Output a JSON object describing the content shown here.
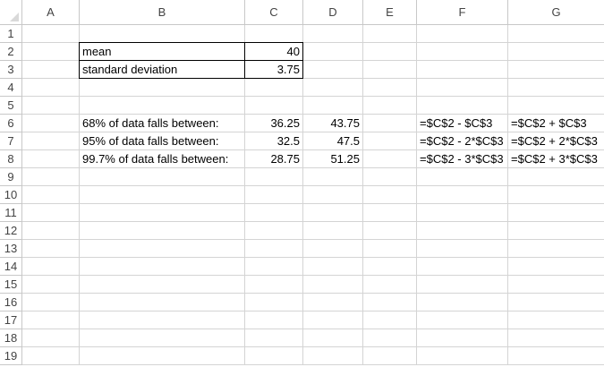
{
  "columns": [
    "A",
    "B",
    "C",
    "D",
    "E",
    "F",
    "G"
  ],
  "rows": [
    "1",
    "2",
    "3",
    "4",
    "5",
    "6",
    "7",
    "8",
    "9",
    "10",
    "11",
    "12",
    "13",
    "14",
    "15",
    "16",
    "17",
    "18",
    "19"
  ],
  "cells": {
    "B2": "mean",
    "C2": "40",
    "B3": "standard deviation",
    "C3": "3.75",
    "B6": "68% of data falls between:",
    "C6": "36.25",
    "D6": "43.75",
    "F6": "=$C$2 - $C$3",
    "G6": "=$C$2 + $C$3",
    "B7": "95% of data falls between:",
    "C7": "32.5",
    "D7": "47.5",
    "F7": "=$C$2 - 2*$C$3",
    "G7": "=$C$2 + 2*$C$3",
    "B8": "99.7% of data falls between:",
    "C8": "28.75",
    "D8": "51.25",
    "F8": "=$C$2 - 3*$C$3",
    "G8": "=$C$2 + 3*$C$3"
  },
  "numeric_cells": [
    "C2",
    "C3",
    "C6",
    "C7",
    "C8",
    "D6",
    "D7",
    "D8"
  ],
  "boxed_cells": [
    "B2",
    "C2",
    "B3",
    "C3"
  ]
}
